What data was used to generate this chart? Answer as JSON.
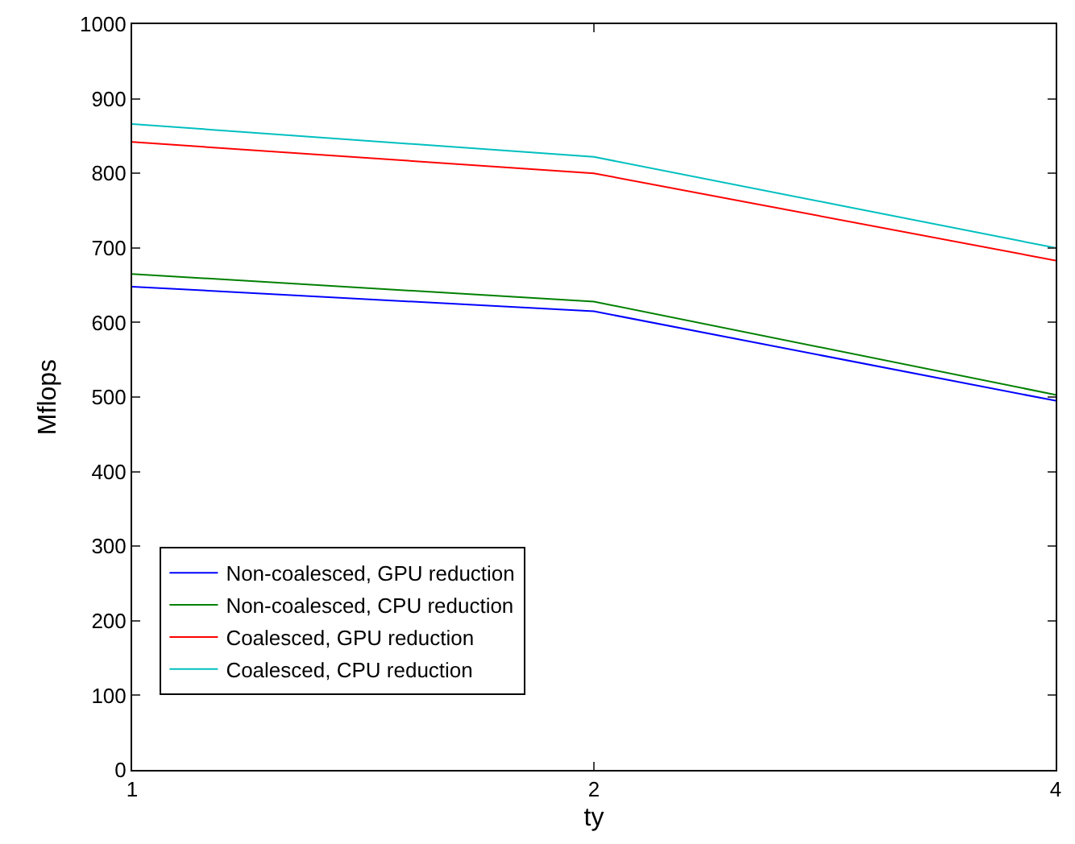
{
  "chart_data": {
    "type": "line",
    "xlabel": "ty",
    "ylabel": "Mflops",
    "x": [
      1,
      2,
      4
    ],
    "log": "x",
    "xlim": [
      1,
      4
    ],
    "xticks": [
      1,
      2,
      4
    ],
    "ylim": [
      0,
      1000
    ],
    "yticks": [
      0,
      100,
      200,
      300,
      400,
      500,
      600,
      700,
      800,
      900,
      1000
    ],
    "grid": false,
    "legend": "bottom left",
    "marker": "none",
    "line_style": "solid",
    "series": [
      {
        "name": "Non-coalesced, GPU reduction",
        "color": "#0000ff",
        "values": [
          648,
          615,
          495
        ]
      },
      {
        "name": "Non-coalesced, CPU reduction",
        "color": "#008000",
        "values": [
          665,
          628,
          503
        ]
      },
      {
        "name": "Coalesced, GPU reduction",
        "color": "#ff0000",
        "values": [
          842,
          800,
          683
        ]
      },
      {
        "name": "Coalesced, CPU reduction",
        "color": "#00bfbf",
        "values": [
          866,
          822,
          700
        ]
      }
    ]
  }
}
